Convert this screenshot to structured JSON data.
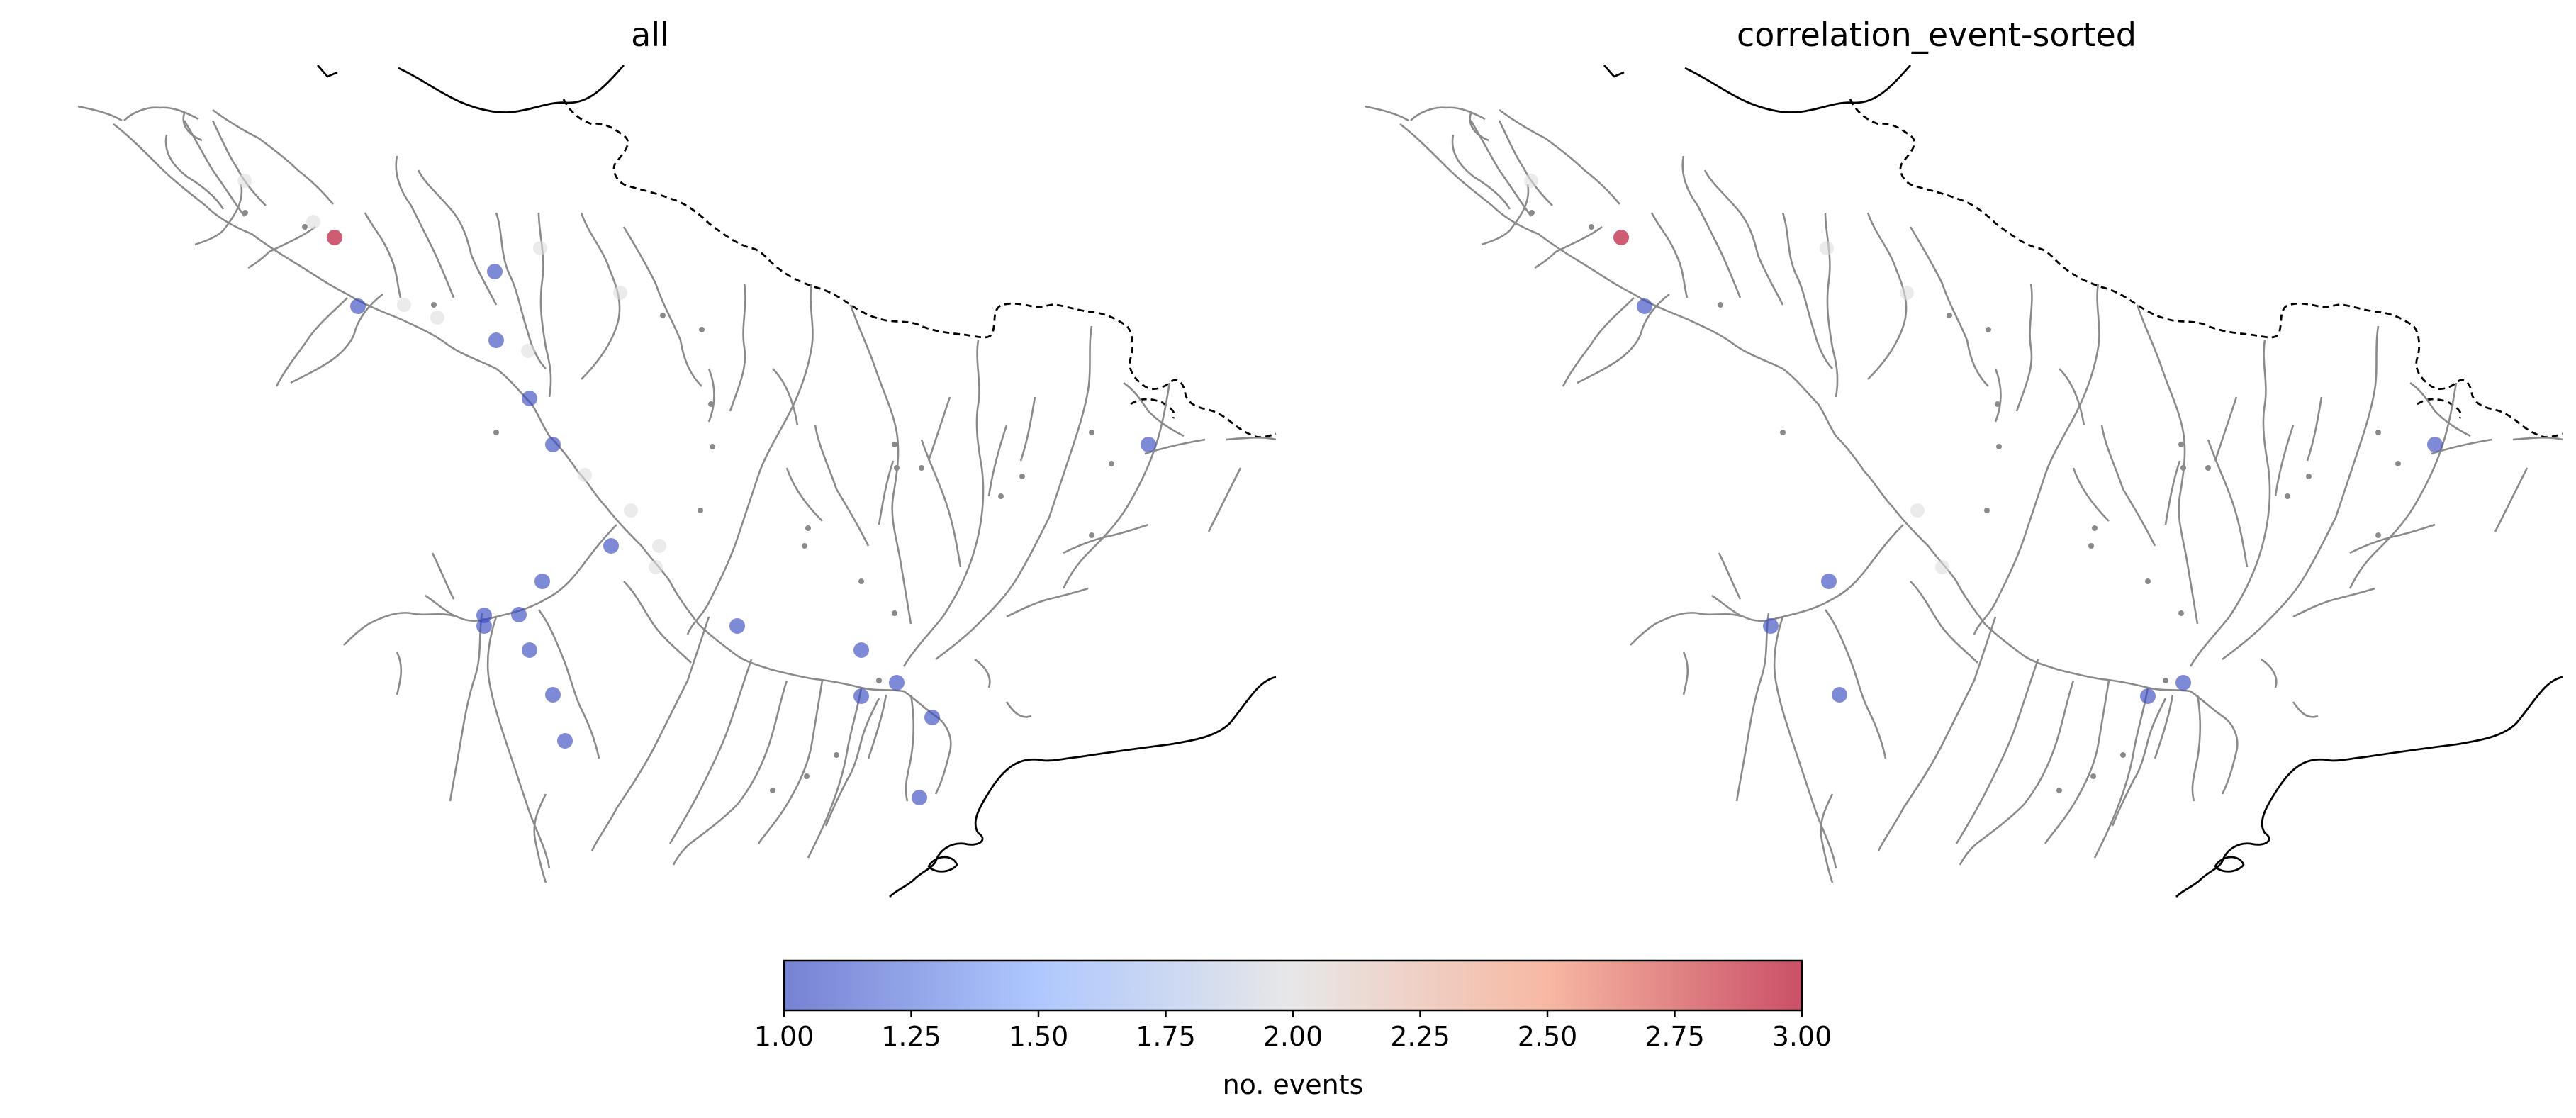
{
  "panels": [
    {
      "title": "all"
    },
    {
      "title": "correlation_event-sorted"
    }
  ],
  "colorbar": {
    "label": "no. events",
    "min": 1.0,
    "max": 3.0,
    "ticks": [
      "1.00",
      "1.25",
      "1.50",
      "1.75",
      "2.00",
      "2.25",
      "2.50",
      "2.75",
      "3.00"
    ],
    "colormap": "coolwarm",
    "colors": [
      "#3b4cc0",
      "#8db0fe",
      "#dddddd",
      "#f49a7b",
      "#b40426"
    ]
  }
}
